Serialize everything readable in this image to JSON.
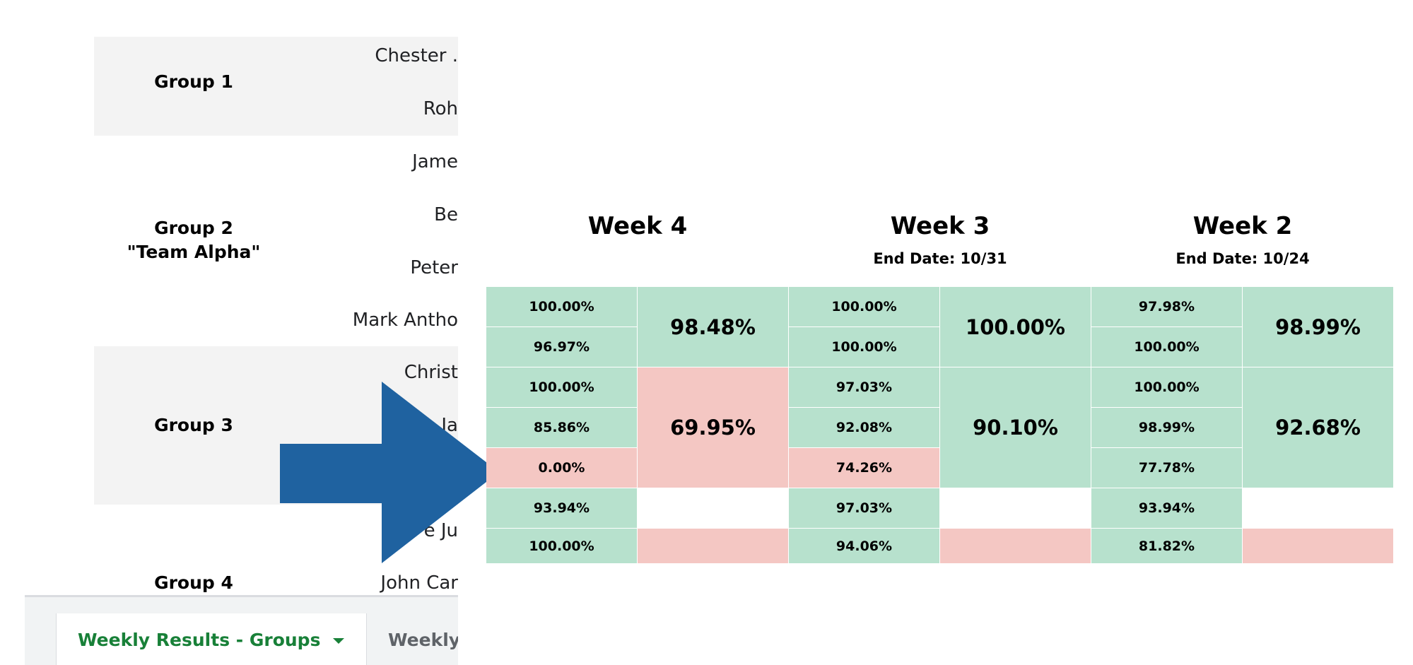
{
  "colors": {
    "green": "#b7e1cd",
    "red": "#f4c7c3",
    "band": "#f3f3f3",
    "tab_active": "#188038",
    "arrow": "#1f62a0"
  },
  "groups": [
    {
      "label": "Group 1",
      "label2": ""
    },
    {
      "label": "Group 2",
      "label2": "\"Team Alpha\""
    },
    {
      "label": "Group 3",
      "label2": ""
    },
    {
      "label": "Group 4",
      "label2": ""
    }
  ],
  "names": [
    "Chester .",
    "Roh",
    "Jame",
    "Be",
    "Peter",
    "Mark Antho",
    "Christ",
    "Ja",
    "e Ju",
    "John Car"
  ],
  "tabs": [
    {
      "label": "Weekly Results - Groups",
      "icon": "caret-down-icon"
    },
    {
      "label": "Weekly Res"
    }
  ],
  "weeks": [
    {
      "title": "Week 4",
      "end_date": "",
      "individual": [
        "100.00%",
        "96.97%",
        "100.00%",
        "85.86%",
        "0.00%",
        "93.94%",
        "100.00%"
      ],
      "individual_status": [
        "green",
        "green",
        "green",
        "green",
        "red",
        "green",
        "green"
      ],
      "group": [
        "98.48%",
        "69.95%",
        ""
      ],
      "group_status": [
        "green",
        "red",
        "red"
      ]
    },
    {
      "title": "Week 3",
      "end_date": "End Date: 10/31",
      "individual": [
        "100.00%",
        "100.00%",
        "97.03%",
        "92.08%",
        "74.26%",
        "97.03%",
        "94.06%"
      ],
      "individual_status": [
        "green",
        "green",
        "green",
        "green",
        "red",
        "green",
        "green"
      ],
      "group": [
        "100.00%",
        "90.10%",
        ""
      ],
      "group_status": [
        "green",
        "green",
        "red"
      ]
    },
    {
      "title": "Week 2",
      "end_date": "End Date: 10/24",
      "individual": [
        "97.98%",
        "100.00%",
        "100.00%",
        "98.99%",
        "77.78%",
        "93.94%",
        "81.82%"
      ],
      "individual_status": [
        "green",
        "green",
        "green",
        "green",
        "green",
        "green",
        "green"
      ],
      "group": [
        "98.99%",
        "92.68%",
        ""
      ],
      "group_status": [
        "green",
        "green",
        "red"
      ]
    }
  ],
  "arrow_icon": "right-arrow-icon"
}
